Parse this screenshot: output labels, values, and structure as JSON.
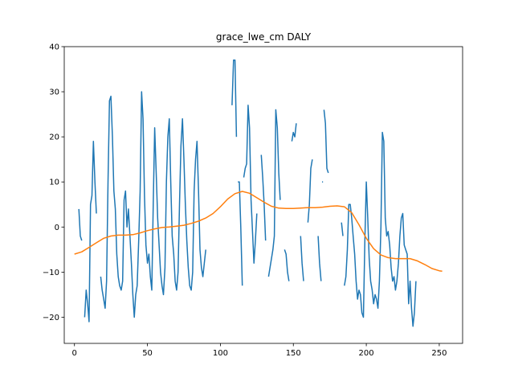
{
  "chart_data": {
    "type": "line",
    "title": "grace_lwe_cm DALY",
    "xlabel": "",
    "ylabel": "",
    "xlim": [
      -7,
      266
    ],
    "ylim": [
      -25.8,
      40
    ],
    "xticks": [
      0,
      50,
      100,
      150,
      200,
      250
    ],
    "yticks": [
      -20,
      -10,
      0,
      10,
      20,
      30,
      40
    ],
    "grid": false,
    "legend": "none",
    "series": [
      {
        "color": "#1f77b4",
        "segments": [
          [
            [
              3,
              4
            ],
            [
              4,
              -2
            ],
            [
              5,
              -3
            ]
          ],
          [
            [
              7,
              -20
            ],
            [
              8,
              -14
            ],
            [
              9,
              -17
            ],
            [
              10,
              -21
            ],
            [
              11,
              5
            ],
            [
              12,
              7
            ],
            [
              13,
              19
            ],
            [
              14,
              10
            ],
            [
              15,
              3
            ]
          ],
          [
            [
              18,
              -11
            ],
            [
              19,
              -14
            ],
            [
              20,
              -16
            ],
            [
              21,
              -18
            ],
            [
              22,
              -12
            ],
            [
              23,
              10
            ],
            [
              24,
              28
            ],
            [
              25,
              29
            ],
            [
              26,
              20
            ],
            [
              27,
              8
            ],
            [
              28,
              4
            ],
            [
              29,
              -6
            ],
            [
              30,
              -11
            ],
            [
              31,
              -13
            ],
            [
              32,
              -14
            ],
            [
              33,
              -12
            ],
            [
              34,
              6
            ],
            [
              35,
              8
            ],
            [
              36,
              0
            ],
            [
              37,
              4
            ],
            [
              38,
              -2
            ],
            [
              39,
              -8
            ],
            [
              40,
              -15
            ],
            [
              41,
              -20
            ],
            [
              42,
              -15
            ],
            [
              43,
              -13
            ],
            [
              44,
              -3
            ],
            [
              45,
              8
            ],
            [
              46,
              30
            ],
            [
              47,
              24
            ],
            [
              48,
              7
            ],
            [
              49,
              -4
            ],
            [
              50,
              -8
            ],
            [
              51,
              -6
            ],
            [
              52,
              -11
            ],
            [
              53,
              -14
            ],
            [
              54,
              5
            ],
            [
              55,
              22
            ],
            [
              56,
              12
            ],
            [
              57,
              2
            ],
            [
              58,
              -4
            ],
            [
              59,
              -10
            ],
            [
              60,
              -13
            ],
            [
              61,
              -15
            ],
            [
              62,
              -9
            ],
            [
              63,
              10
            ],
            [
              64,
              20
            ],
            [
              65,
              24
            ],
            [
              66,
              10
            ],
            [
              67,
              -2
            ],
            [
              68,
              -6
            ],
            [
              69,
              -12
            ],
            [
              70,
              -14
            ],
            [
              71,
              -10
            ],
            [
              72,
              5
            ],
            [
              73,
              18
            ],
            [
              74,
              24
            ],
            [
              75,
              15
            ],
            [
              76,
              5
            ],
            [
              77,
              -3
            ],
            [
              78,
              -9
            ],
            [
              79,
              -13
            ],
            [
              80,
              -14
            ],
            [
              81,
              -10
            ],
            [
              82,
              8
            ],
            [
              83,
              15
            ],
            [
              84,
              19
            ],
            [
              85,
              8
            ],
            [
              86,
              -5
            ],
            [
              87,
              -9
            ],
            [
              88,
              -11
            ],
            [
              89,
              -8
            ],
            [
              90,
              -5
            ]
          ],
          [
            [
              108,
              27
            ],
            [
              109,
              37
            ],
            [
              110,
              37
            ],
            [
              111,
              20
            ]
          ],
          [
            [
              112,
              10
            ],
            [
              113,
              10
            ],
            [
              114,
              0
            ],
            [
              115,
              -13
            ]
          ],
          [
            [
              116,
              11
            ],
            [
              117,
              13
            ],
            [
              118,
              14
            ],
            [
              119,
              27
            ],
            [
              120,
              22
            ],
            [
              121,
              6
            ],
            [
              122,
              -1
            ],
            [
              123,
              -8
            ],
            [
              124,
              -3
            ],
            [
              125,
              3
            ]
          ],
          [
            [
              128,
              16
            ],
            [
              129,
              11
            ],
            [
              130,
              5
            ],
            [
              131,
              -3
            ]
          ],
          [
            [
              133,
              -11
            ],
            [
              134,
              -9
            ],
            [
              135,
              -7
            ],
            [
              136,
              -5
            ],
            [
              137,
              -2
            ],
            [
              138,
              26
            ],
            [
              139,
              22
            ],
            [
              140,
              12
            ],
            [
              141,
              6
            ]
          ],
          [
            [
              144,
              -5
            ],
            [
              145,
              -6
            ],
            [
              146,
              -10
            ],
            [
              147,
              -12
            ]
          ],
          [
            [
              149,
              19
            ],
            [
              150,
              21
            ],
            [
              151,
              20
            ],
            [
              152,
              23
            ]
          ],
          [
            [
              155,
              -2
            ],
            [
              156,
              -8
            ],
            [
              157,
              -12
            ]
          ],
          [
            [
              160,
              1
            ],
            [
              161,
              5
            ],
            [
              162,
              13
            ],
            [
              163,
              15
            ]
          ],
          [
            [
              167,
              -2
            ],
            [
              168,
              -8
            ],
            [
              169,
              -12
            ]
          ],
          [
            [
              170,
              10
            ]
          ],
          [
            [
              171,
              26
            ],
            [
              172,
              23
            ],
            [
              173,
              13
            ],
            [
              174,
              12
            ]
          ],
          [
            [
              183,
              1
            ],
            [
              184,
              -2
            ]
          ],
          [
            [
              185,
              -13
            ],
            [
              186,
              -11
            ],
            [
              187,
              -5
            ],
            [
              188,
              5
            ],
            [
              189,
              5
            ],
            [
              190,
              2
            ],
            [
              191,
              -2
            ],
            [
              192,
              -6
            ],
            [
              193,
              -12
            ],
            [
              194,
              -16
            ],
            [
              195,
              -14
            ],
            [
              196,
              -15
            ],
            [
              197,
              -19
            ],
            [
              198,
              -20
            ],
            [
              199,
              -3
            ],
            [
              200,
              10
            ],
            [
              201,
              2
            ],
            [
              202,
              -7
            ],
            [
              203,
              -12
            ],
            [
              204,
              -14
            ],
            [
              205,
              -17
            ],
            [
              206,
              -15
            ],
            [
              207,
              -16
            ],
            [
              208,
              -18
            ],
            [
              209,
              -12
            ],
            [
              210,
              0
            ],
            [
              211,
              21
            ],
            [
              212,
              19
            ],
            [
              213,
              2
            ],
            [
              214,
              -2
            ],
            [
              215,
              -1
            ],
            [
              216,
              -4
            ],
            [
              217,
              -9
            ],
            [
              218,
              -12
            ],
            [
              219,
              -11
            ],
            [
              220,
              -14
            ],
            [
              221,
              -12
            ],
            [
              222,
              -8
            ],
            [
              223,
              -2
            ],
            [
              224,
              2
            ],
            [
              225,
              3
            ],
            [
              226,
              -4
            ],
            [
              227,
              -5
            ],
            [
              228,
              -6
            ],
            [
              229,
              -17
            ],
            [
              230,
              -12
            ],
            [
              231,
              -18
            ],
            [
              232,
              -22
            ],
            [
              233,
              -19
            ],
            [
              234,
              -12
            ]
          ]
        ]
      },
      {
        "color": "#ff7f0e",
        "points": [
          [
            0,
            -6
          ],
          [
            5,
            -5.5
          ],
          [
            10,
            -4.5
          ],
          [
            15,
            -3.5
          ],
          [
            20,
            -2.5
          ],
          [
            25,
            -2
          ],
          [
            30,
            -1.8
          ],
          [
            35,
            -1.8
          ],
          [
            40,
            -1.7
          ],
          [
            45,
            -1.3
          ],
          [
            50,
            -0.8
          ],
          [
            55,
            -0.4
          ],
          [
            60,
            -0.1
          ],
          [
            65,
            0
          ],
          [
            70,
            0.2
          ],
          [
            75,
            0.4
          ],
          [
            80,
            0.8
          ],
          [
            85,
            1.3
          ],
          [
            90,
            2
          ],
          [
            95,
            3
          ],
          [
            100,
            4.5
          ],
          [
            105,
            6.2
          ],
          [
            110,
            7.4
          ],
          [
            115,
            7.9
          ],
          [
            120,
            7.5
          ],
          [
            125,
            6.5
          ],
          [
            130,
            5.5
          ],
          [
            135,
            4.6
          ],
          [
            140,
            4.2
          ],
          [
            145,
            4.1
          ],
          [
            150,
            4.1
          ],
          [
            155,
            4.2
          ],
          [
            160,
            4.3
          ],
          [
            165,
            4.3
          ],
          [
            170,
            4.4
          ],
          [
            175,
            4.6
          ],
          [
            180,
            4.7
          ],
          [
            185,
            4.5
          ],
          [
            190,
            3.2
          ],
          [
            195,
            0.5
          ],
          [
            200,
            -2.5
          ],
          [
            205,
            -4.8
          ],
          [
            210,
            -6.2
          ],
          [
            215,
            -6.8
          ],
          [
            220,
            -7
          ],
          [
            225,
            -7
          ],
          [
            230,
            -7
          ],
          [
            235,
            -7.5
          ],
          [
            240,
            -8.3
          ],
          [
            245,
            -9.2
          ],
          [
            250,
            -9.7
          ],
          [
            252,
            -9.8
          ]
        ]
      }
    ]
  }
}
